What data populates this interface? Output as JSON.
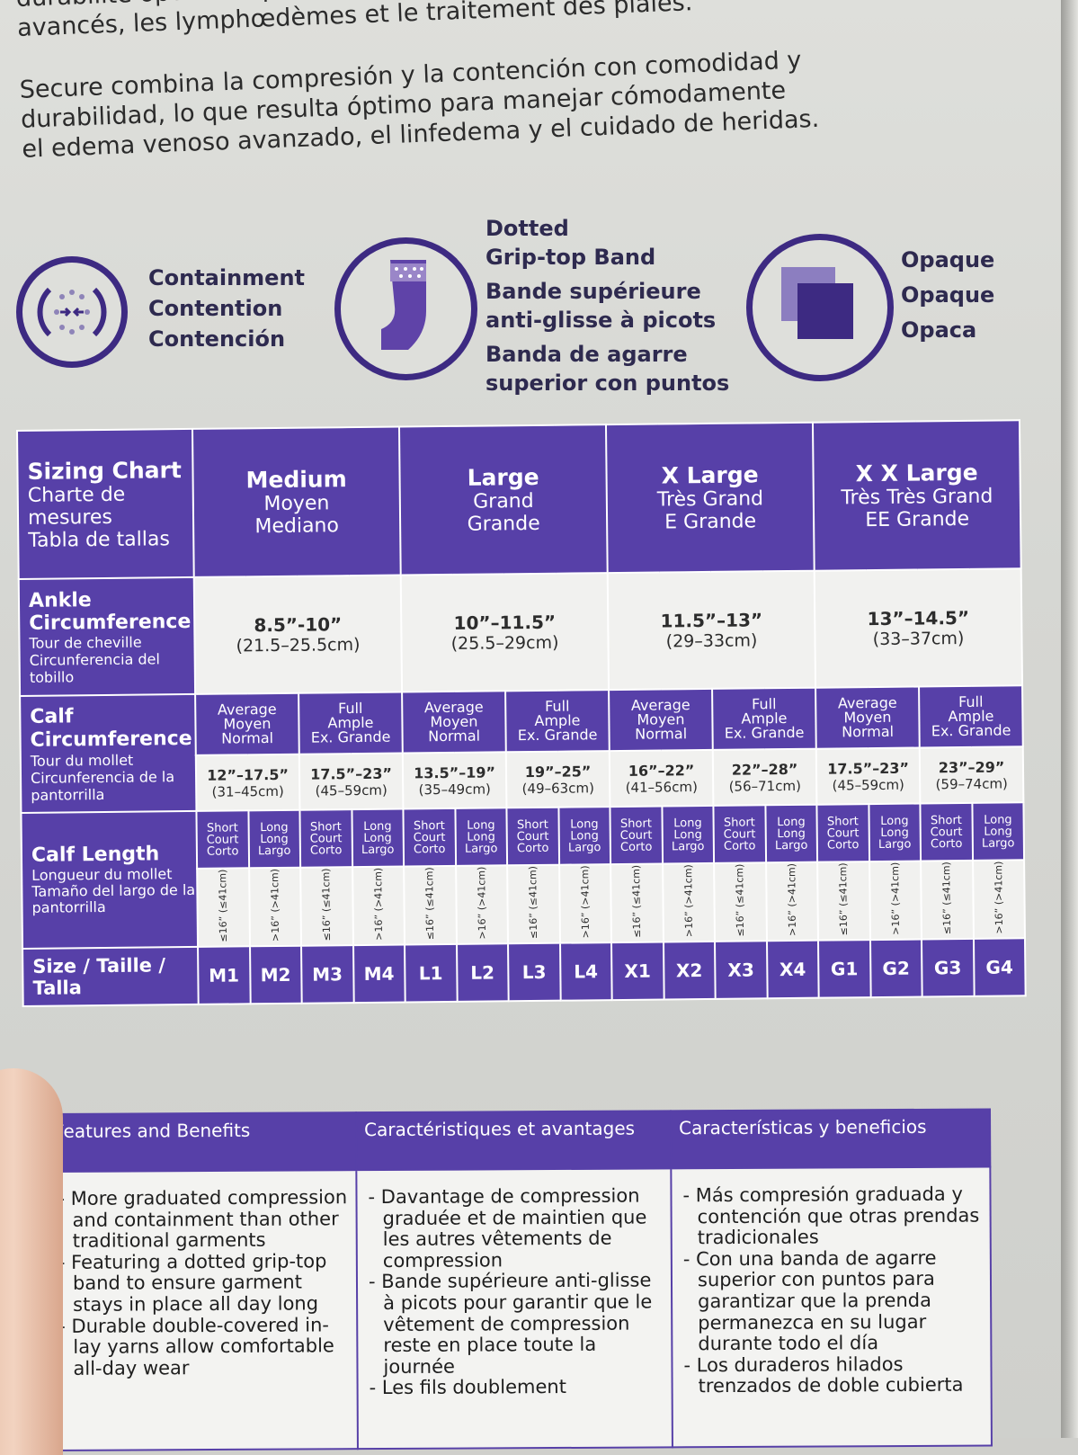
{
  "intro": {
    "fr_line1": "durabilité optimaux pour gérer confortablement les œdèmes veineux",
    "fr_line2": "avancés, les lymphœdèmes et le traitement des plaies.",
    "es_line1": "Secure combina la compresión y la contención con comodidad y",
    "es_line2": "durabilidad, lo que resulta óptimo para manejar cómodamente",
    "es_line3": "el edema venoso avanzado, el linfedema y el cuidado de heridas."
  },
  "icons": {
    "containment": {
      "icon": "containment-icon",
      "en": "Containment",
      "fr": "Contention",
      "es": "Contención"
    },
    "grip": {
      "icon": "dotted-band-leg-icon",
      "l1": "Dotted",
      "l2": "Grip-top Band",
      "l3": "Bande supérieure",
      "l4": "anti-glisse à picots",
      "l5": "Banda de agarre",
      "l6": "superior con puntos"
    },
    "opaque": {
      "icon": "opaque-squares-icon",
      "en": "Opaque",
      "fr": "Opaque",
      "es": "Opaca"
    }
  },
  "chart": {
    "title": {
      "en": "Sizing Chart",
      "fr": "Charte de mesures",
      "es": "Tabla de tallas"
    },
    "sizes": [
      {
        "en": "Medium",
        "fr": "Moyen",
        "es": "Mediano"
      },
      {
        "en": "Large",
        "fr": "Grand",
        "es": "Grande"
      },
      {
        "en": "X Large",
        "fr": "Très Grand",
        "es": "E Grande"
      },
      {
        "en": "X X Large",
        "fr": "Très Très Grand",
        "es": "EE Grande"
      }
    ],
    "ankle_label": {
      "en": "Ankle Circumference",
      "fr": "Tour de cheville",
      "es": "Circunferencia del tobillo"
    },
    "ankle": [
      {
        "in": "8.5”-10”",
        "cm": "(21.5–25.5cm)"
      },
      {
        "in": "10”–11.5”",
        "cm": "(25.5–29cm)"
      },
      {
        "in": "11.5”–13”",
        "cm": "(29–33cm)"
      },
      {
        "in": "13”–14.5”",
        "cm": "(33–37cm)"
      }
    ],
    "calf_label": {
      "en": "Calf Circumference",
      "fr": "Tour du mollet",
      "es": "Circunferencia de la pantorrilla"
    },
    "calf_types": [
      {
        "l1": "Average",
        "l2": "Moyen",
        "l3": "Normal"
      },
      {
        "l1": "Full",
        "l2": "Ample",
        "l3": "Ex. Grande"
      },
      {
        "l1": "Average",
        "l2": "Moyen",
        "l3": "Normal"
      },
      {
        "l1": "Full",
        "l2": "Ample",
        "l3": "Ex. Grande"
      },
      {
        "l1": "Average",
        "l2": "Moyen",
        "l3": "Normal"
      },
      {
        "l1": "Full",
        "l2": "Ample",
        "l3": "Ex. Grande"
      },
      {
        "l1": "Average",
        "l2": "Moyen",
        "l3": "Normal"
      },
      {
        "l1": "Full",
        "l2": "Ample",
        "l3": "Ex. Grande"
      }
    ],
    "calf": [
      {
        "in": "12”–17.5”",
        "cm": "(31–45cm)"
      },
      {
        "in": "17.5”–23”",
        "cm": "(45–59cm)"
      },
      {
        "in": "13.5”–19”",
        "cm": "(35–49cm)"
      },
      {
        "in": "19”–25”",
        "cm": "(49–63cm)"
      },
      {
        "in": "16”–22”",
        "cm": "(41–56cm)"
      },
      {
        "in": "22”–28”",
        "cm": "(56–71cm)"
      },
      {
        "in": "17.5”–23”",
        "cm": "(45–59cm)"
      },
      {
        "in": "23”–29”",
        "cm": "(59–74cm)"
      }
    ],
    "length_label": {
      "en": "Calf Length",
      "fr": "Longueur du mollet",
      "es": "Tamaño del largo de la pantorrilla"
    },
    "short": {
      "l1": "Short",
      "l2": "Court",
      "l3": "Corto"
    },
    "long": {
      "l1": "Long",
      "l2": "Long",
      "l3": "Largo"
    },
    "short_meas": "≤16” (≤41cm)",
    "long_meas": ">16” (>41cm)",
    "size_label": "Size / Taille / Talla",
    "size_codes": [
      "M1",
      "M2",
      "M3",
      "M4",
      "L1",
      "L2",
      "L3",
      "L4",
      "X1",
      "X2",
      "X3",
      "X4",
      "G1",
      "G2",
      "G3",
      "G4"
    ]
  },
  "features": {
    "headers": [
      "Features and Benefits",
      "Caractéristiques et avantages",
      "Características y beneficios"
    ],
    "en": [
      "- More graduated compression and containment than other traditional garments",
      "- Featuring a dotted grip-top band to ensure garment stays in place all day long",
      "- Durable double-covered in-lay yarns allow comfortable all-day wear"
    ],
    "fr": [
      "- Davantage de compression graduée et de maintien que les autres vêtements de compression",
      "- Bande supérieure anti-glisse à picots pour garantir que le vêtement de compression reste en place toute la journée",
      "- Les fils doublement"
    ],
    "es": [
      "- Más compresión graduada y contención que otras prendas tradicionales",
      "- Con una banda de agarre superior con puntos para garantizar que la prenda permanezca en su lugar durante todo el día",
      "- Los duraderos hilados trenzados de doble cubierta"
    ]
  }
}
